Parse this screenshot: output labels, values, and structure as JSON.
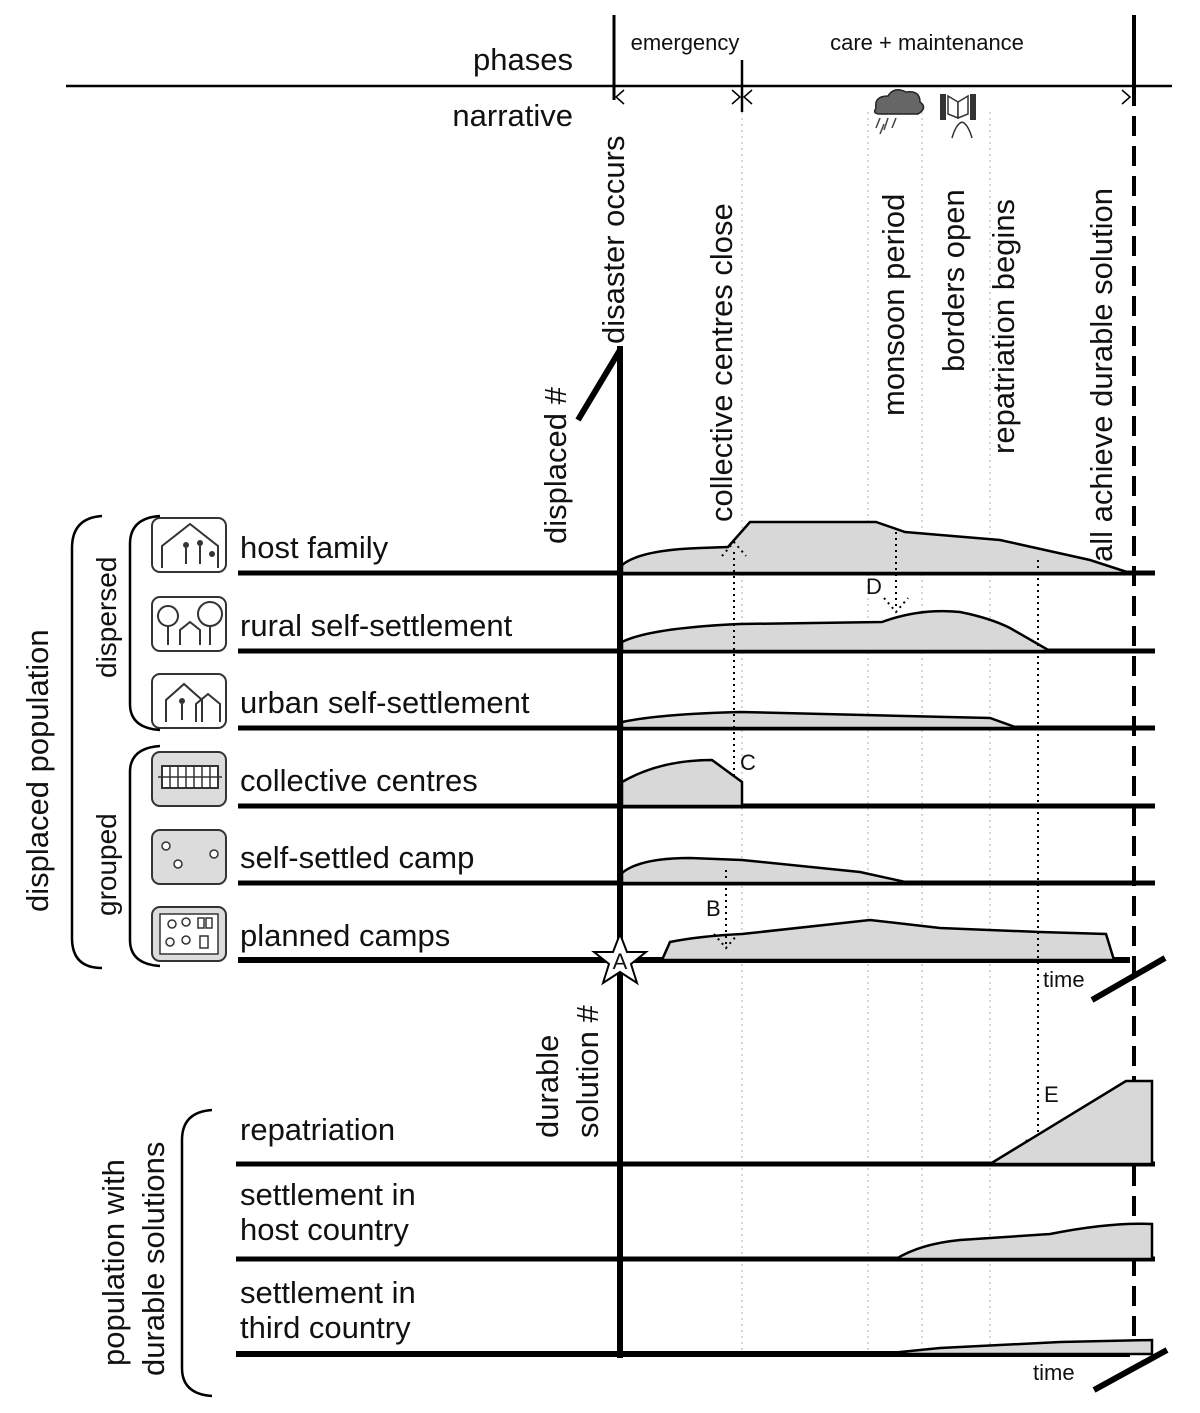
{
  "phases": {
    "label": "phases",
    "emergency": "emergency",
    "care": "care + maintenance",
    "narrative": "narrative"
  },
  "events": {
    "disaster": "disaster occurs",
    "collective_close": "collective centres close",
    "monsoon": "monsoon period",
    "borders": "borders open",
    "repatriation_begins": "repatriation begins",
    "durable": "all achieve durable solution"
  },
  "axes": {
    "displaced": "displaced #",
    "durable_line1": "durable",
    "durable_line2": "solution #",
    "time_top": "time",
    "time_bottom": "time"
  },
  "groups": {
    "displaced_population": "displaced population",
    "dispersed": "dispersed",
    "grouped": "grouped",
    "durable_pop_line1": "population with",
    "durable_pop_line2": "durable solutions"
  },
  "rows": {
    "host_family": "host family",
    "rural": "rural self-settlement",
    "urban": "urban self-settlement",
    "collective": "collective centres",
    "self_settled": "self-settled camp",
    "planned": "planned camps",
    "repatriation": "repatriation",
    "host_country_line1": "settlement in",
    "host_country_line2": "host country",
    "third_country_line1": "settlement in",
    "third_country_line2": "third country"
  },
  "markers": {
    "A": "A",
    "B": "B",
    "C": "C",
    "D": "D",
    "E": "E"
  },
  "icons": {
    "host_family": "host-family-icon",
    "rural": "rural-settlement-icon",
    "urban": "urban-settlement-icon",
    "collective": "collective-centre-icon",
    "self_settled": "self-settled-camp-icon",
    "planned": "planned-camp-icon",
    "monsoon": "rain-cloud-icon",
    "borders": "border-gate-icon"
  }
}
